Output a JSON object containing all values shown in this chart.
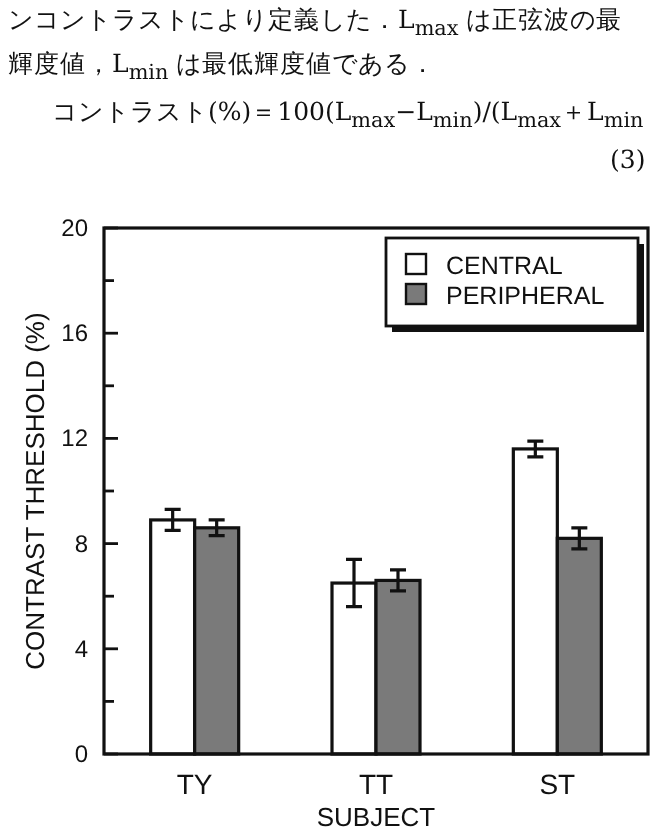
{
  "chart_data": {
    "type": "bar",
    "annotations": [
      "ンコントラストにより定義した．L$_{max}$ は正弦波の最",
      "輝度値，L$_{min}$ は最低輝度値である．",
      "コントラスト(%)＝100(L$_{max}$−L$_{min}$)/(L$_{max}$＋L$_{min}$",
      "(3)"
    ],
    "xlabel": "SUBJECT",
    "ylabel": "CONTRAST THRESHOLD (%)",
    "categories": [
      "TY",
      "TT",
      "ST"
    ],
    "series": [
      {
        "name": "CENTRAL",
        "color": "#ffffff",
        "values": [
          8.9,
          6.5,
          11.6
        ],
        "errors": [
          0.4,
          0.9,
          0.3
        ]
      },
      {
        "name": "PERIPHERAL",
        "color": "#7a7a7a",
        "values": [
          8.6,
          6.6,
          8.2
        ],
        "errors": [
          0.3,
          0.4,
          0.4
        ]
      }
    ],
    "ylim": [
      0,
      20
    ],
    "yticks": [
      0,
      {
        "value": 2,
        "label": null
      },
      4,
      {
        "value": 6,
        "label": null
      },
      8,
      {
        "value": 10,
        "label": null
      },
      12,
      {
        "value": 14,
        "label": null
      },
      16,
      {
        "value": 18,
        "label": null
      },
      20
    ],
    "grid": false,
    "legend": "top right"
  }
}
